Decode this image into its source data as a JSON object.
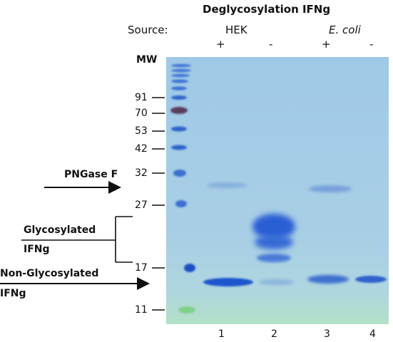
{
  "title": "Deglycosylation IFNg",
  "source_label": "Source:",
  "sources": {
    "hek": "HEK",
    "ecoli": "E. coli"
  },
  "treatment": {
    "l1": "+",
    "l2": "-",
    "l3": "+",
    "l4": "-"
  },
  "mw_header": "MW",
  "mw_markers": [
    {
      "label": "91",
      "kda": 91
    },
    {
      "label": "70",
      "kda": 70
    },
    {
      "label": "53",
      "kda": 53
    },
    {
      "label": "42",
      "kda": 42
    },
    {
      "label": "32",
      "kda": 32
    },
    {
      "label": "27",
      "kda": 27
    },
    {
      "label": "17",
      "kda": 17
    },
    {
      "label": "11",
      "kda": 11
    }
  ],
  "lanes": [
    "1",
    "2",
    "3",
    "4"
  ],
  "annotations": {
    "pngase": "PNGase F",
    "glyco_line1": "Glycosylated",
    "glyco_line2": "IFNg",
    "nonglyco_line1": "Non-Glycosylated",
    "nonglyco_line2": "IFNg"
  },
  "colors": {
    "gel_background": "#a9cde6",
    "band": "#1f55c8",
    "ladder": "#2b63d0",
    "ladder_dark": "#5b3a5e",
    "gel_bottom": "#a8dcc0",
    "arrow": "#111111"
  }
}
